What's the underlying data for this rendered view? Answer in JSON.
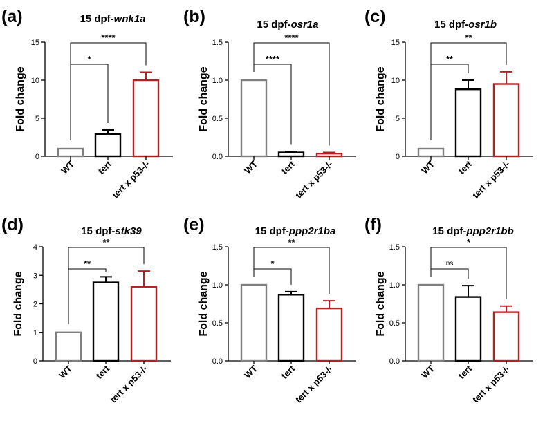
{
  "categories": [
    "WT",
    "tert",
    "tert x p53-/-"
  ],
  "colors": {
    "WT": "#808080",
    "tert": "#000000",
    "tert x p53-/-": "#b22222",
    "axis": "#000000"
  },
  "chart_data": [
    {
      "type": "bar",
      "letter": "(a)",
      "title_prefix": "15 dpf-",
      "title_gene": "wnk1a",
      "ylabel": "Fold change",
      "ylim": [
        0,
        15
      ],
      "yticks": [
        "0",
        "5",
        "10",
        "15"
      ],
      "categories": [
        "WT",
        "tert",
        "tert x p53-/-"
      ],
      "values": [
        1.0,
        2.9,
        10.0
      ],
      "errors": [
        0,
        0.55,
        1.05
      ],
      "significance": [
        {
          "from": 0,
          "to": 1,
          "label": "*"
        },
        {
          "from": 0,
          "to": 2,
          "label": "****"
        }
      ]
    },
    {
      "type": "bar",
      "letter": "(b)",
      "title_prefix": "15 dpf-",
      "title_gene": "osr1a",
      "ylabel": "Fold change",
      "ylim": [
        0,
        1.5
      ],
      "yticks": [
        "0.0",
        "0.5",
        "1.0",
        "1.5"
      ],
      "categories": [
        "WT",
        "tert",
        "tert x p53-/-"
      ],
      "values": [
        1.0,
        0.05,
        0.035
      ],
      "errors": [
        0,
        0.01,
        0.015
      ],
      "significance": [
        {
          "from": 0,
          "to": 1,
          "label": "****"
        },
        {
          "from": 0,
          "to": 2,
          "label": "****"
        }
      ]
    },
    {
      "type": "bar",
      "letter": "(c)",
      "title_prefix": "15 dpf-",
      "title_gene": "osr1b",
      "ylabel": "Fold change",
      "ylim": [
        0,
        15
      ],
      "yticks": [
        "0",
        "5",
        "10",
        "15"
      ],
      "categories": [
        "WT",
        "tert",
        "tert x p53-/-"
      ],
      "values": [
        1.0,
        8.8,
        9.5
      ],
      "errors": [
        0,
        1.2,
        1.6
      ],
      "significance": [
        {
          "from": 0,
          "to": 1,
          "label": "**"
        },
        {
          "from": 0,
          "to": 2,
          "label": "**"
        }
      ]
    },
    {
      "type": "bar",
      "letter": "(d)",
      "title_prefix": "15 dpf-",
      "title_gene": "stk39",
      "ylabel": "Fold change",
      "ylim": [
        0,
        4
      ],
      "yticks": [
        "0",
        "1",
        "2",
        "3",
        "4"
      ],
      "categories": [
        "WT",
        "tert",
        "tert x p53-/-"
      ],
      "values": [
        1.0,
        2.75,
        2.6
      ],
      "errors": [
        0,
        0.2,
        0.55
      ],
      "significance": [
        {
          "from": 0,
          "to": 1,
          "label": "**"
        },
        {
          "from": 0,
          "to": 2,
          "label": "**"
        }
      ]
    },
    {
      "type": "bar",
      "letter": "(e)",
      "title_prefix": "15 dpf-",
      "title_gene": "ppp2r1ba",
      "ylabel": "Fold change",
      "ylim": [
        0,
        1.5
      ],
      "yticks": [
        "0.0",
        "0.5",
        "1.0",
        "1.5"
      ],
      "categories": [
        "WT",
        "tert",
        "tert x p53-/-"
      ],
      "values": [
        1.0,
        0.87,
        0.69
      ],
      "errors": [
        0,
        0.04,
        0.1
      ],
      "significance": [
        {
          "from": 0,
          "to": 1,
          "label": "*"
        },
        {
          "from": 0,
          "to": 2,
          "label": "**"
        }
      ]
    },
    {
      "type": "bar",
      "letter": "(f)",
      "title_prefix": "15 dpf-",
      "title_gene": "ppp2r1bb",
      "ylabel": "Fold change",
      "ylim": [
        0,
        1.5
      ],
      "yticks": [
        "0.0",
        "0.5",
        "1.0",
        "1.5"
      ],
      "categories": [
        "WT",
        "tert",
        "tert x p53-/-"
      ],
      "values": [
        1.0,
        0.84,
        0.64
      ],
      "errors": [
        0,
        0.15,
        0.08
      ],
      "significance": [
        {
          "from": 0,
          "to": 1,
          "label": "ns"
        },
        {
          "from": 0,
          "to": 2,
          "label": "*"
        }
      ]
    }
  ]
}
